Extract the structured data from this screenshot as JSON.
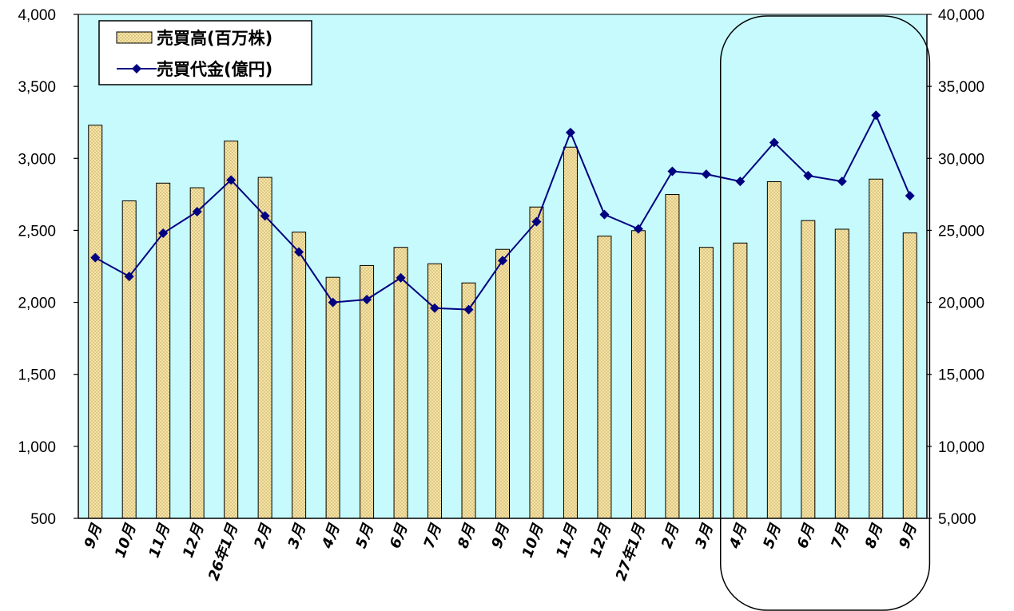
{
  "chart_data": {
    "type": "bar",
    "categories": [
      "9月",
      "10月",
      "11月",
      "12月",
      "26年1月",
      "2月",
      "3月",
      "4月",
      "5月",
      "6月",
      "7月",
      "8月",
      "9月",
      "10月",
      "11月",
      "12月",
      "27年1月",
      "2月",
      "3月",
      "4月",
      "5月",
      "6月",
      "7月",
      "8月",
      "9月"
    ],
    "series": [
      {
        "name": "売買高(百万株)",
        "type": "bar",
        "axis": "left",
        "color": "#f5e3a0",
        "values": [
          3230,
          2705,
          2828,
          2796,
          3120,
          2868,
          2488,
          2174,
          2256,
          2382,
          2268,
          2135,
          2368,
          2662,
          3078,
          2460,
          2498,
          2749,
          2382,
          2412,
          2838,
          2568,
          2508,
          2856,
          2482
        ]
      },
      {
        "name": "売買代金(億円)",
        "type": "line",
        "axis": "right",
        "color": "#000080",
        "values": [
          23100,
          21800,
          24800,
          26300,
          28500,
          26000,
          23500,
          20000,
          20200,
          21700,
          19600,
          19500,
          22900,
          25600,
          31800,
          26100,
          25100,
          29100,
          28900,
          28400,
          31100,
          28800,
          28400,
          33000,
          27400
        ]
      }
    ],
    "left_axis": {
      "ylim": [
        500,
        4000
      ],
      "ticks": [
        "500",
        "1,000",
        "1,500",
        "2,000",
        "2,500",
        "3,000",
        "3,500",
        "4,000"
      ]
    },
    "right_axis": {
      "ylim": [
        5000,
        40000
      ],
      "ticks": [
        "5,000",
        "10,000",
        "15,000",
        "20,000",
        "25,000",
        "30,000",
        "35,000",
        "40,000"
      ]
    },
    "legend": {
      "placement": "top-left",
      "bar_label": "売買高(百万株)",
      "line_label": "売買代金(億円)"
    },
    "highlight": {
      "shape": "rounded-rectangle",
      "from_category_index": 19,
      "to_category_index": 24
    },
    "plot_background": "#c6fafc",
    "grid": false
  }
}
